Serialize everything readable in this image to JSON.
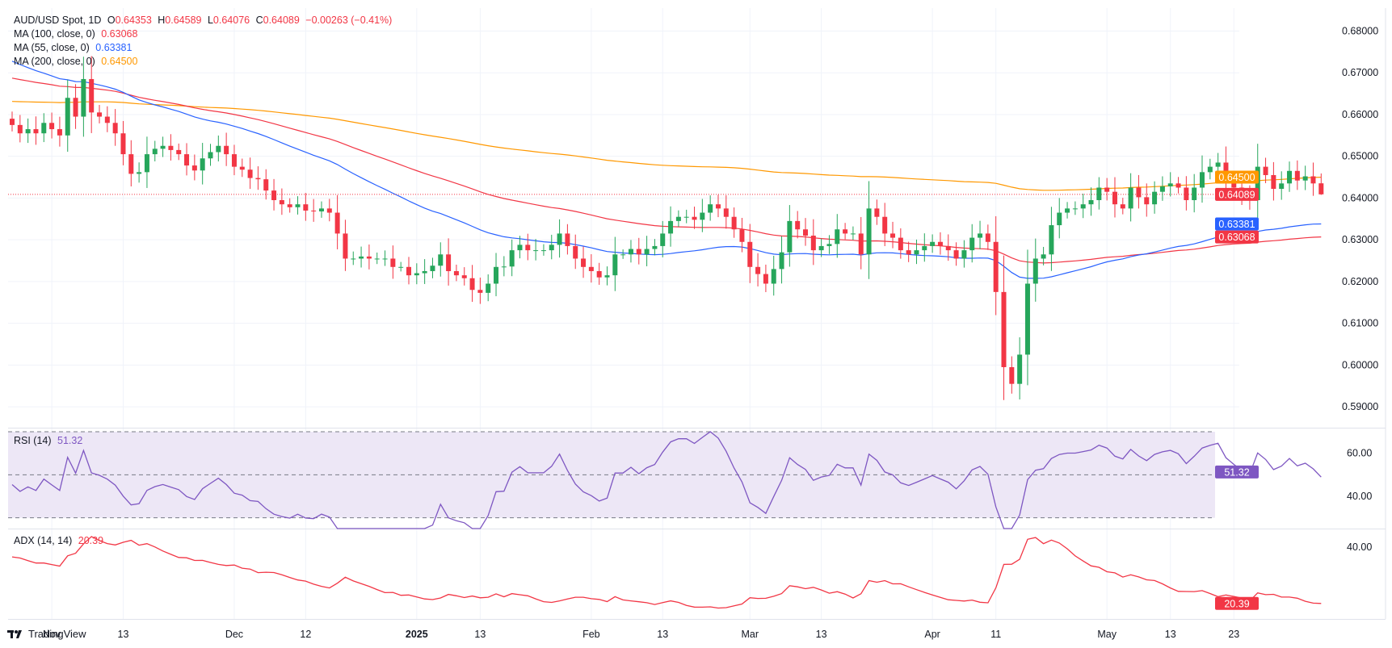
{
  "header": {
    "symbol": "AUD/USD Spot, 1D",
    "o_label": "O",
    "o_value": "0.64353",
    "h_label": "H",
    "h_value": "0.64589",
    "l_label": "L",
    "l_value": "0.64076",
    "c_label": "C",
    "c_value": "0.64089",
    "change": "−0.00263 (−0.41%)"
  },
  "ma_legend": [
    {
      "label": "MA (100, close, 0)",
      "value": "0.63068",
      "color": "#f23645"
    },
    {
      "label": "MA (55, close, 0)",
      "value": "0.63381",
      "color": "#2962ff"
    },
    {
      "label": "MA (200, close, 0)",
      "value": "0.64500",
      "color": "#ff9800"
    }
  ],
  "colors": {
    "up": "#26a65b",
    "down": "#f23645",
    "ma100": "#f23645",
    "ma55": "#2962ff",
    "ma200": "#ff9800",
    "rsi": "#7e57c2",
    "adx": "#f23645",
    "rsi_band": "#ede7f6",
    "grid": "#f0f3fa"
  },
  "price_axis": [
    "0.68000",
    "0.67000",
    "0.66000",
    "0.65000",
    "0.64000",
    "0.63000",
    "0.62000",
    "0.61000",
    "0.60000",
    "0.59000"
  ],
  "price_tags": [
    {
      "value": 0.645,
      "label": "0.64500",
      "color": "#ff9800"
    },
    {
      "value": 0.64089,
      "label": "0.64089",
      "color": "#f23645"
    },
    {
      "value": 0.63381,
      "label": "0.63381",
      "color": "#2962ff"
    },
    {
      "value": 0.63068,
      "label": "0.63068",
      "color": "#f23645"
    }
  ],
  "x_axis": [
    {
      "label": "Nov",
      "i": 5,
      "bold": false
    },
    {
      "label": "13",
      "i": 14,
      "bold": false
    },
    {
      "label": "Dec",
      "i": 28,
      "bold": false
    },
    {
      "label": "12",
      "i": 37,
      "bold": false
    },
    {
      "label": "2025",
      "i": 51,
      "bold": true
    },
    {
      "label": "13",
      "i": 59,
      "bold": false
    },
    {
      "label": "Feb",
      "i": 73,
      "bold": false
    },
    {
      "label": "13",
      "i": 82,
      "bold": false
    },
    {
      "label": "Mar",
      "i": 93,
      "bold": false
    },
    {
      "label": "13",
      "i": 102,
      "bold": false
    },
    {
      "label": "Apr",
      "i": 116,
      "bold": false
    },
    {
      "label": "11",
      "i": 124,
      "bold": false
    },
    {
      "label": "May",
      "i": 138,
      "bold": false
    },
    {
      "label": "13",
      "i": 146,
      "bold": false
    },
    {
      "label": "23",
      "i": 154,
      "bold": false
    }
  ],
  "rsi_panel": {
    "title": "RSI (14)",
    "value": "51.32",
    "axis": [
      "60.00",
      "40.00"
    ],
    "upper": 70,
    "mid": 50,
    "lower": 30
  },
  "adx_panel": {
    "title": "ADX (14, 14)",
    "value": "20.39",
    "axis": [
      "40.00"
    ]
  },
  "brand": "TradingView",
  "chart_data": {
    "type": "candlestick",
    "title": "AUD/USD Spot, 1D",
    "ylim": [
      0.585,
      0.6855
    ],
    "closes": [
      0.6575,
      0.6555,
      0.6565,
      0.6555,
      0.658,
      0.6565,
      0.655,
      0.664,
      0.6595,
      0.6685,
      0.6605,
      0.6595,
      0.658,
      0.6555,
      0.6505,
      0.6458,
      0.6462,
      0.6505,
      0.6518,
      0.6525,
      0.6515,
      0.6505,
      0.6478,
      0.6466,
      0.6495,
      0.651,
      0.6525,
      0.6505,
      0.6475,
      0.6468,
      0.6448,
      0.6445,
      0.6418,
      0.6395,
      0.6385,
      0.6378,
      0.6385,
      0.637,
      0.6368,
      0.6375,
      0.6365,
      0.6315,
      0.6255,
      0.6255,
      0.626,
      0.6255,
      0.6255,
      0.6255,
      0.6235,
      0.6235,
      0.6215,
      0.622,
      0.6225,
      0.6238,
      0.6265,
      0.6225,
      0.6215,
      0.6208,
      0.618,
      0.6173,
      0.6195,
      0.6235,
      0.6236,
      0.6275,
      0.6288,
      0.6275,
      0.6275,
      0.6275,
      0.6288,
      0.6315,
      0.6285,
      0.6255,
      0.6235,
      0.6225,
      0.621,
      0.6215,
      0.6265,
      0.6265,
      0.6278,
      0.6265,
      0.6278,
      0.6285,
      0.6315,
      0.6345,
      0.6355,
      0.6355,
      0.6348,
      0.6365,
      0.6385,
      0.6375,
      0.6355,
      0.6325,
      0.6295,
      0.6235,
      0.6218,
      0.6195,
      0.623,
      0.627,
      0.6345,
      0.6325,
      0.631,
      0.6275,
      0.6285,
      0.629,
      0.6325,
      0.6315,
      0.6315,
      0.6265,
      0.6375,
      0.6355,
      0.6315,
      0.6305,
      0.6275,
      0.6265,
      0.6275,
      0.6285,
      0.6295,
      0.6285,
      0.6275,
      0.6255,
      0.6275,
      0.6305,
      0.6315,
      0.6295,
      0.6175,
      0.5995,
      0.5955,
      0.6025,
      0.6195,
      0.6255,
      0.6265,
      0.6335,
      0.6365,
      0.6375,
      0.6375,
      0.6385,
      0.6395,
      0.6425,
      0.6415,
      0.6385,
      0.6375,
      0.6425,
      0.6402,
      0.6385,
      0.6415,
      0.6428,
      0.6435,
      0.6425,
      0.6395,
      0.6425,
      0.6462,
      0.6475,
      0.6485,
      0.6445,
      0.6425,
      0.6405,
      0.6395,
      0.6475,
      0.6455,
      0.6422,
      0.6435,
      0.6465,
      0.6442,
      0.6452,
      0.6435,
      0.6409
    ],
    "last": {
      "open": 0.64353,
      "high": 0.64589,
      "low": 0.64076,
      "close": 0.64089,
      "change": -0.00263,
      "change_pct": -0.41
    },
    "series": [
      {
        "name": "MA (100, close, 0)",
        "last": 0.63068
      },
      {
        "name": "MA (55, close, 0)",
        "last": 0.63381
      },
      {
        "name": "MA (200, close, 0)",
        "last": 0.645
      },
      {
        "name": "RSI (14)",
        "last": 51.32
      },
      {
        "name": "ADX (14, 14)",
        "last": 20.39
      }
    ],
    "x_tick_labels": [
      "Nov",
      "13",
      "Dec",
      "12",
      "2025",
      "13",
      "Feb",
      "13",
      "Mar",
      "13",
      "Apr",
      "11",
      "May",
      "13",
      "23"
    ],
    "y_tick_labels": [
      "0.68000",
      "0.67000",
      "0.66000",
      "0.65000",
      "0.64000",
      "0.63000",
      "0.62000",
      "0.61000",
      "0.60000",
      "0.59000"
    ],
    "rsi_ylim": [
      25,
      70
    ],
    "adx_ylim": [
      15,
      45
    ]
  }
}
